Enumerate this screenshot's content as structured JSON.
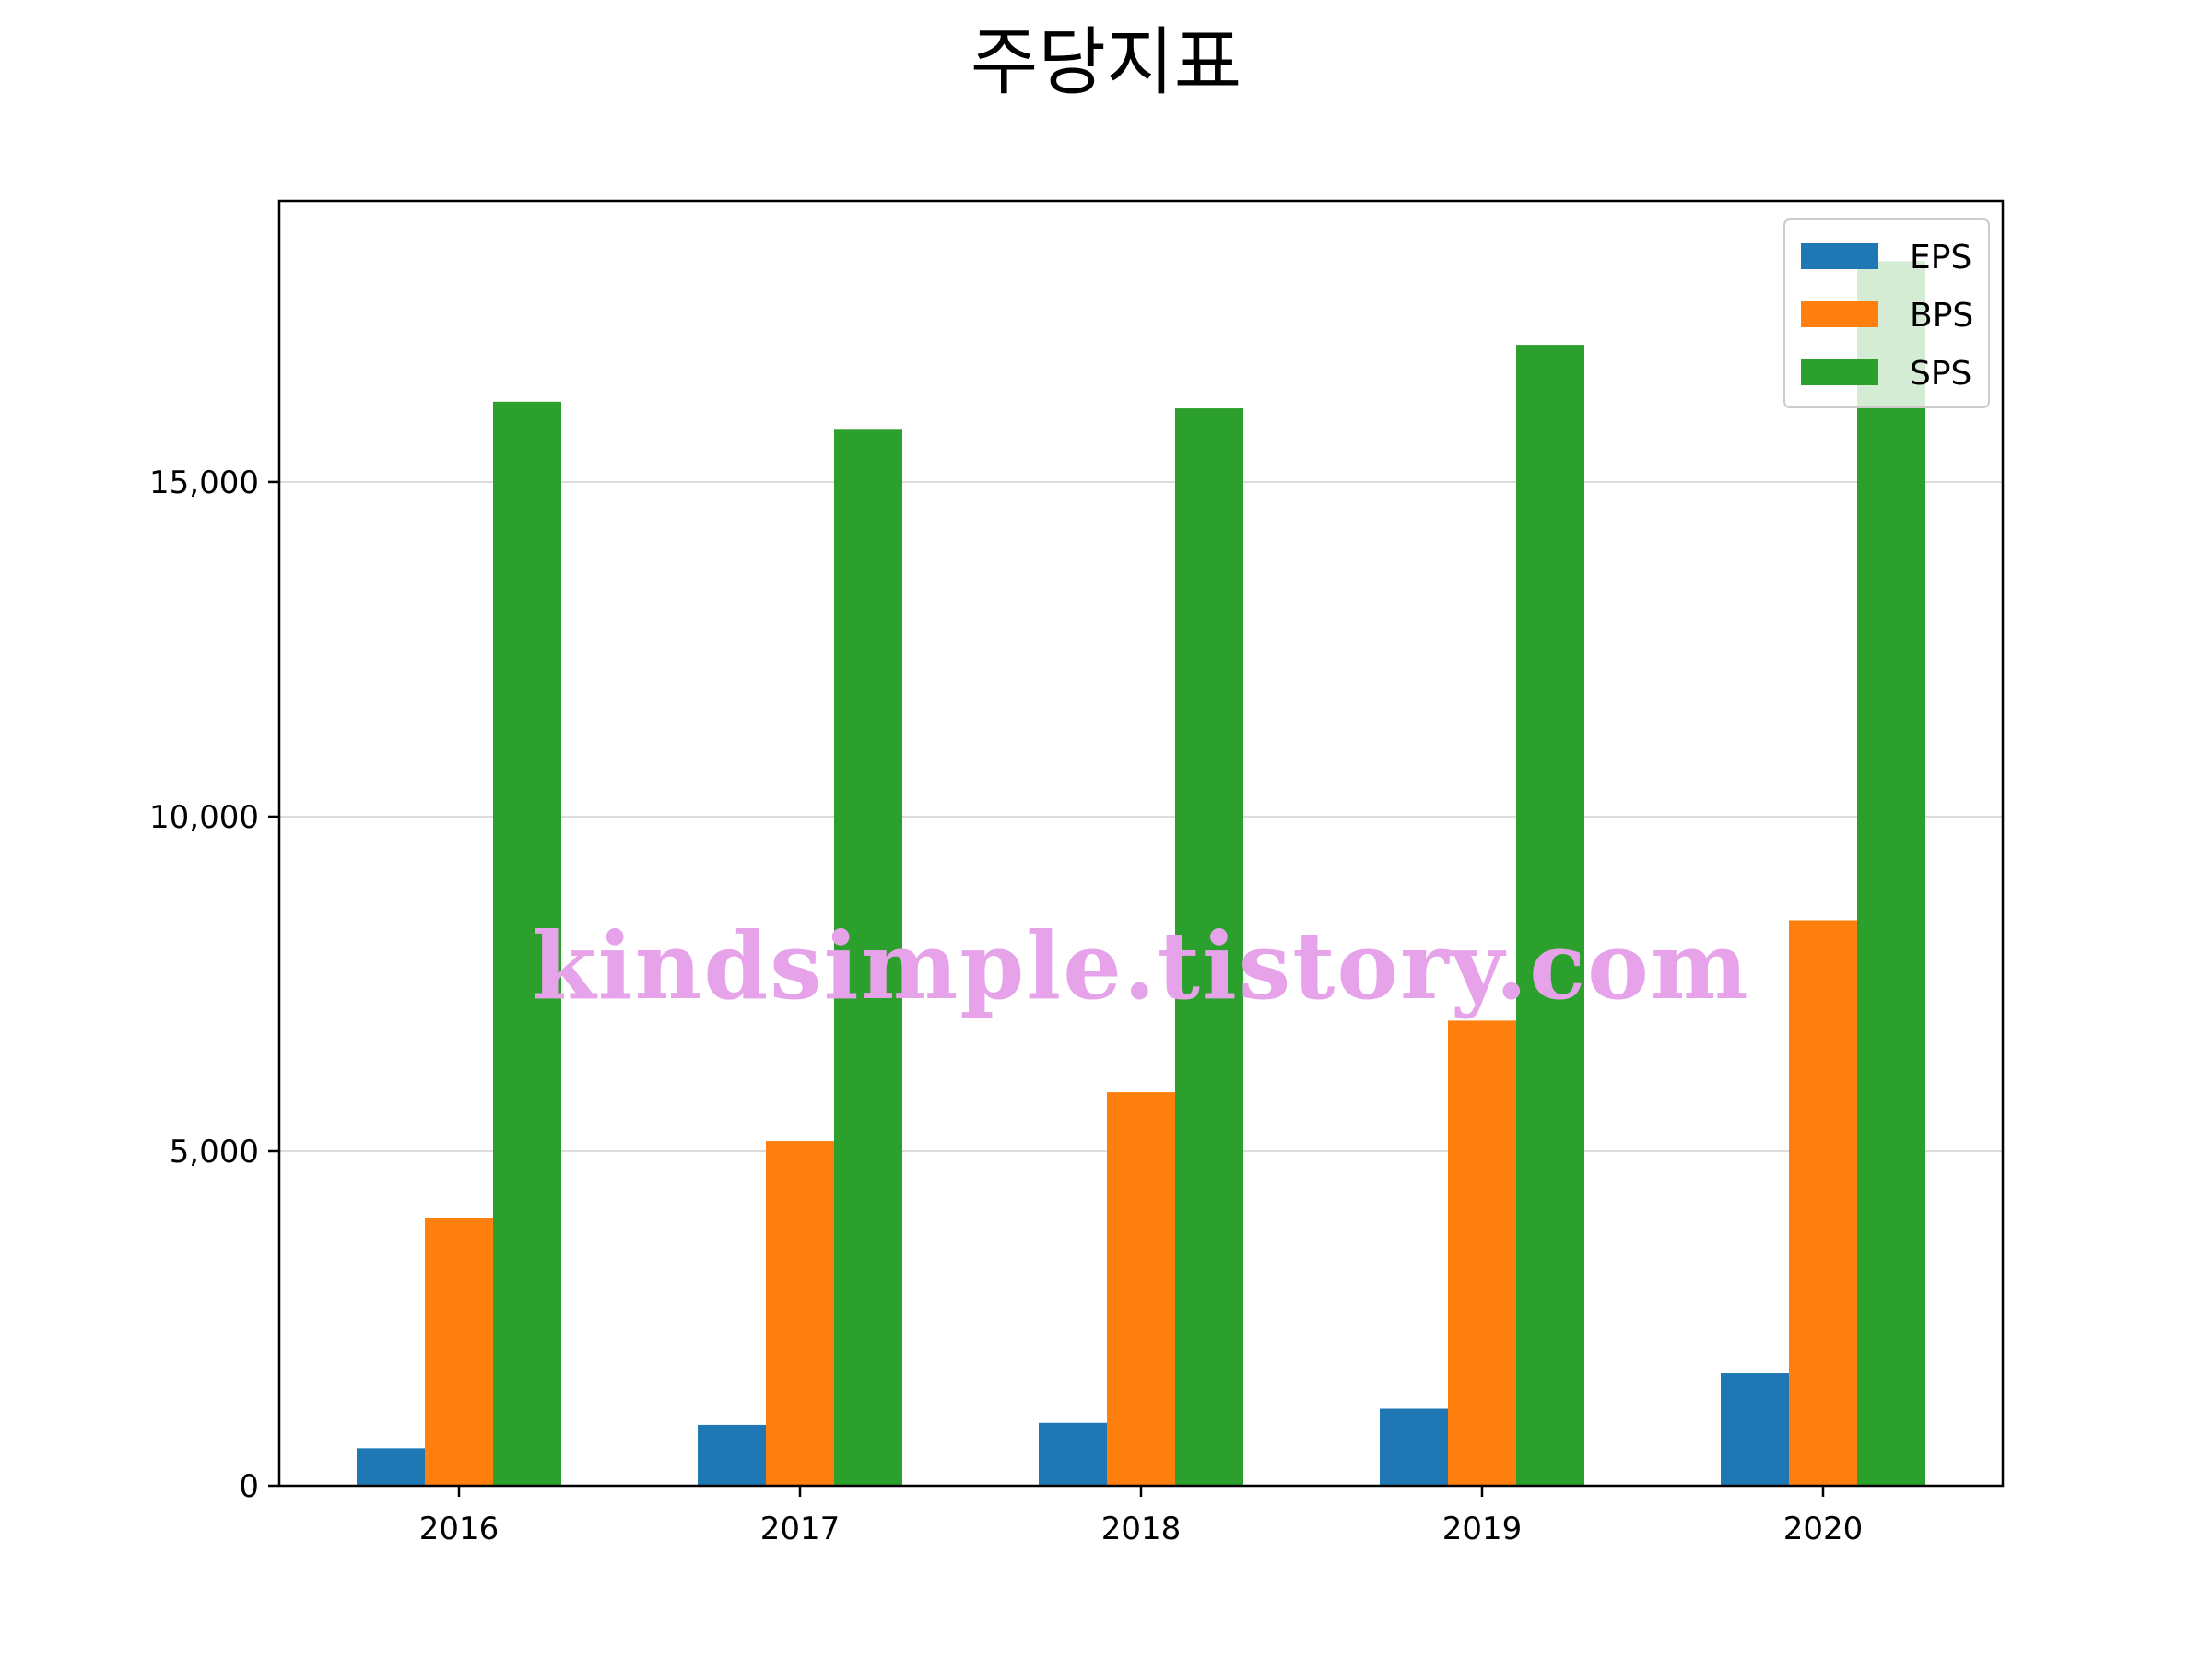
{
  "chart_data": {
    "type": "bar",
    "title": "주당지표",
    "xlabel": "",
    "ylabel": "",
    "categories": [
      "2016",
      "2017",
      "2018",
      "2019",
      "2020"
    ],
    "series": [
      {
        "name": "EPS",
        "color": "#1f77b4",
        "values": [
          560,
          910,
          940,
          1150,
          1680
        ]
      },
      {
        "name": "BPS",
        "color": "#ff7f0e",
        "values": [
          4000,
          5150,
          5880,
          6950,
          8450
        ]
      },
      {
        "name": "SPS",
        "color": "#2ca02c",
        "values": [
          16200,
          15780,
          16100,
          17050,
          18300
        ]
      }
    ],
    "ylim": [
      0,
      19200
    ],
    "yticks": [
      0,
      5000,
      10000,
      15000
    ],
    "ytick_labels": [
      "0",
      "5,000",
      "10,000",
      "15,000"
    ],
    "grid": "horizontal",
    "legend_position": "top-right"
  },
  "watermark": {
    "text": "kindsimple.tistory.com",
    "color": "#e6a3ea"
  }
}
